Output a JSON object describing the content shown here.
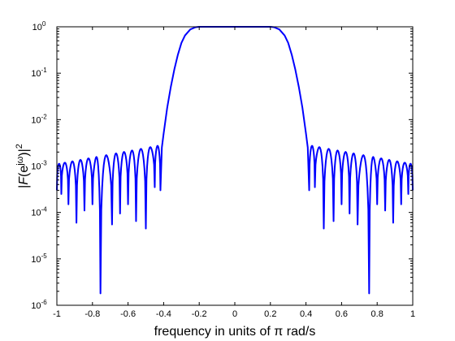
{
  "chart_data": {
    "type": "line",
    "title": "",
    "xlabel": "frequency in units of π rad/s",
    "ylabel": "|F(e^{jω})|^2",
    "ylabel_parts": {
      "prefix": "|",
      "F": "F",
      "open": "(e",
      "exp": "jω",
      "close": ")|",
      "sq": "2"
    },
    "xscale": "linear",
    "yscale": "log",
    "xlim": [
      -1,
      1
    ],
    "ylim": [
      1e-06,
      1
    ],
    "xticks": [
      -1,
      -0.8,
      -0.6,
      -0.4,
      -0.2,
      0,
      0.2,
      0.4,
      0.6,
      0.8,
      1
    ],
    "xtick_labels": [
      "-1",
      "-0.8",
      "-0.6",
      "-0.4",
      "-0.2",
      "0",
      "0.2",
      "0.4",
      "0.6",
      "0.8",
      "1"
    ],
    "yticks": [
      1e-06,
      1e-05,
      0.0001,
      0.001,
      0.01,
      0.1,
      1
    ],
    "ytick_labels": [
      {
        "base": "10",
        "exp": "-6"
      },
      {
        "base": "10",
        "exp": "-5"
      },
      {
        "base": "10",
        "exp": "-4"
      },
      {
        "base": "10",
        "exp": "-3"
      },
      {
        "base": "10",
        "exp": "-2"
      },
      {
        "base": "10",
        "exp": "-1"
      },
      {
        "base": "10",
        "exp": "0"
      }
    ],
    "grid": false,
    "line_color": "#0000ff",
    "series": [
      {
        "passband": {
          "from": -0.2,
          "to": 0.2,
          "value": 1.0
        },
        "edge_points": [
          {
            "x": 0.2,
            "y": 1.0
          },
          {
            "x": 0.22,
            "y": 0.98
          },
          {
            "x": 0.25,
            "y": 0.88
          },
          {
            "x": 0.28,
            "y": 0.65
          },
          {
            "x": 0.3,
            "y": 0.45
          },
          {
            "x": 0.32,
            "y": 0.25
          },
          {
            "x": 0.34,
            "y": 0.12
          },
          {
            "x": 0.36,
            "y": 0.05
          },
          {
            "x": 0.38,
            "y": 0.018
          },
          {
            "x": 0.4,
            "y": 0.005
          },
          {
            "x": 0.41,
            "y": 0.0025
          },
          {
            "x": 0.418,
            "y": 0.0003
          }
        ],
        "stopband_ripple": {
          "from": 0.418,
          "to": 1.0,
          "peak_start": 0.0028,
          "peak_end": 0.0011
        },
        "nulls": [
          {
            "x": 0.45,
            "y": 0.00035
          },
          {
            "x": 0.5,
            "y": 4.5e-05
          },
          {
            "x": 0.555,
            "y": 6.5e-05
          },
          {
            "x": 0.6,
            "y": 0.00015
          },
          {
            "x": 0.645,
            "y": 9.5e-05
          },
          {
            "x": 0.69,
            "y": 5.5e-05
          },
          {
            "x": 0.755,
            "y": 1.8e-06
          },
          {
            "x": 0.8,
            "y": 0.00015
          },
          {
            "x": 0.845,
            "y": 0.00011
          },
          {
            "x": 0.89,
            "y": 6e-05
          },
          {
            "x": 0.935,
            "y": 0.00015
          },
          {
            "x": 0.975,
            "y": 0.00025
          },
          {
            "x": 1.0,
            "y": 0.0003
          }
        ],
        "symmetric": true
      }
    ]
  }
}
